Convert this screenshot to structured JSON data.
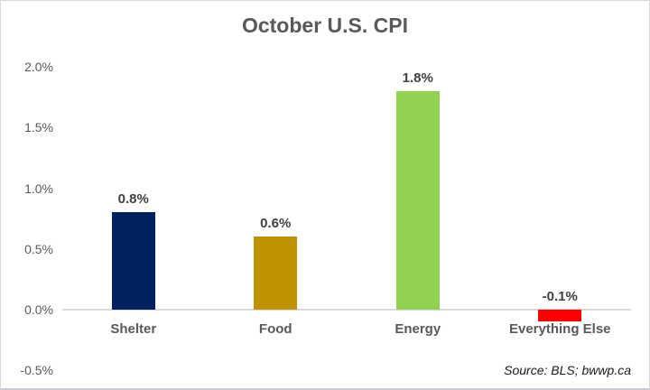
{
  "chart_data": {
    "type": "bar",
    "title": "October U.S. CPI",
    "categories": [
      "Shelter",
      "Food",
      "Energy",
      "Everything Else"
    ],
    "values": [
      0.8,
      0.6,
      1.8,
      -0.1
    ],
    "value_labels": [
      "0.8%",
      "0.6%",
      "1.8%",
      "-0.1%"
    ],
    "bar_colors": [
      "#002060",
      "#bf9000",
      "#92d050",
      "#ff0000"
    ],
    "xlabel": "",
    "ylabel": "",
    "ylim": [
      -0.5,
      2.0
    ],
    "yticks": [
      2.0,
      1.5,
      1.0,
      0.5,
      0.0,
      -0.5
    ],
    "ytick_labels": [
      "2.0%",
      "1.5%",
      "1.0%",
      "0.5%",
      "0.0%",
      "-0.5%"
    ],
    "grid": false,
    "legend_position": "none"
  },
  "source_note": "Source: BLS; bwwp.ca",
  "colors": {
    "title_text": "#595959",
    "tick_text": "#595959",
    "value_label_text": "#404040",
    "category_text": "#595959",
    "axis_line": "#d9d9d9",
    "frame_border": "#d9d9d9",
    "navy": "#002060",
    "gold": "#bf9000",
    "green": "#92d050",
    "red": "#ff0000"
  }
}
